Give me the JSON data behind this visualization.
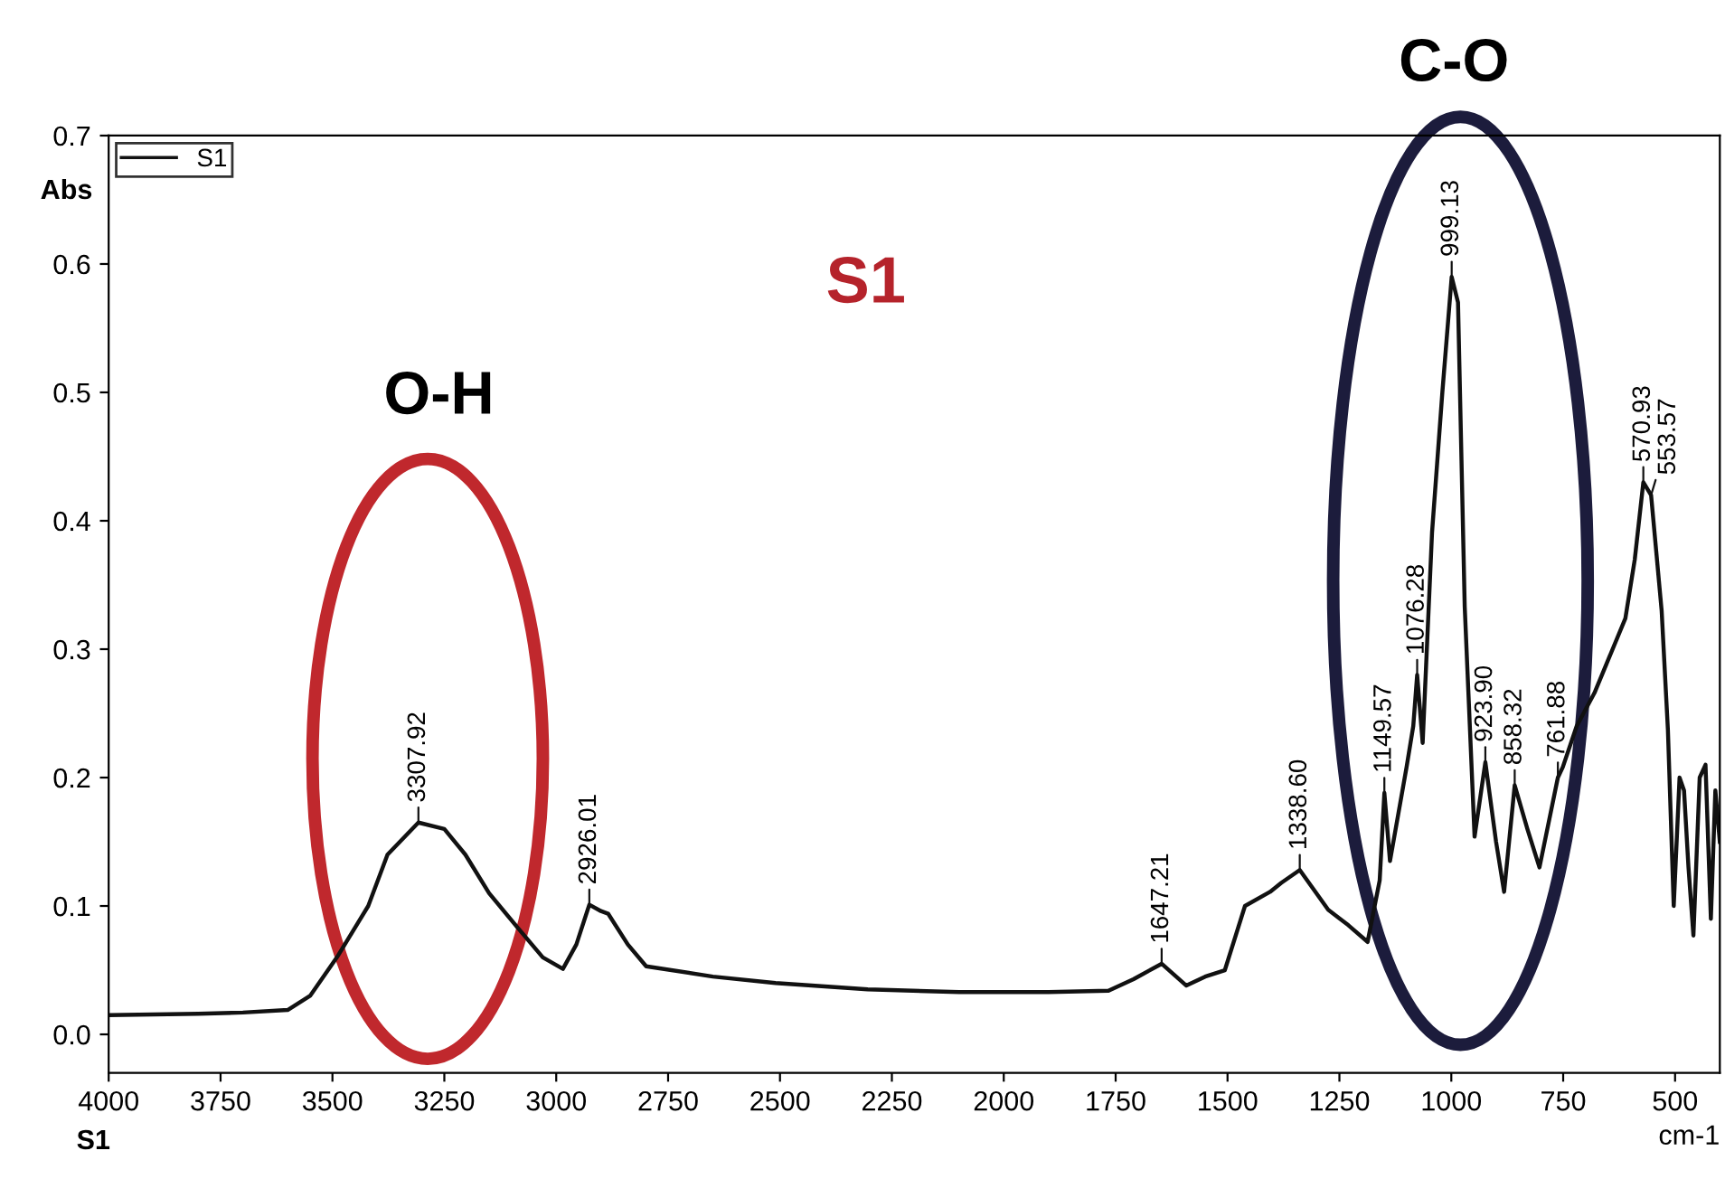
{
  "chart_data": {
    "type": "line",
    "title": "S1",
    "xlabel": "cm-1",
    "ylabel": "Abs",
    "xlim": [
      4000,
      400
    ],
    "ylim": [
      -0.03,
      0.7
    ],
    "xticks": [
      4000,
      3750,
      3500,
      3250,
      3000,
      2750,
      2500,
      2250,
      2000,
      1750,
      1500,
      1250,
      1000,
      750,
      500
    ],
    "yticks": [
      {
        "value": 0,
        "label": "0.0"
      },
      0.1,
      0.2,
      0.3,
      0.4,
      0.5,
      0.6,
      0.7
    ],
    "grid": false,
    "legend": "top left",
    "annotations": [
      "O-H",
      "C-O",
      "S1",
      {
        "text": "3307.92",
        "x": 3307.92,
        "y": 0.165
      },
      {
        "text": "2926.01",
        "x": 2926.01,
        "y": 0.101
      },
      {
        "text": "1647.21",
        "x": 1647.21,
        "y": 0.055
      },
      {
        "text": "1338.60",
        "x": 1338.6,
        "y": 0.128
      },
      {
        "text": "1149.57",
        "x": 1149.57,
        "y": 0.188
      },
      {
        "text": "1076.28",
        "x": 1076.28,
        "y": 0.28
      },
      {
        "text": "999.13",
        "x": 999.13,
        "y": 0.59
      },
      {
        "text": "923.90",
        "x": 923.9,
        "y": 0.212
      },
      {
        "text": "858.32",
        "x": 858.32,
        "y": 0.194
      },
      {
        "text": "761.88",
        "x": 761.88,
        "y": 0.2
      },
      {
        "text": "570.93",
        "x": 570.93,
        "y": 0.43
      },
      {
        "text": "553.57",
        "x": 553.57,
        "y": 0.42
      }
    ],
    "series": [
      {
        "name": "S1",
        "color": "#111111",
        "x": [
          4000,
          3800,
          3700,
          3600,
          3550,
          3490,
          3420,
          3377,
          3307.92,
          3250,
          3203,
          3150,
          3086,
          3030,
          2985,
          2955,
          2926.01,
          2900,
          2884,
          2840,
          2799,
          2650,
          2510,
          2304,
          2100,
          1900,
          1766,
          1710,
          1647.21,
          1592,
          1550,
          1506,
          1461,
          1405,
          1380,
          1338.6,
          1275,
          1230,
          1187,
          1160,
          1149.57,
          1137,
          1100,
          1085,
          1076.28,
          1064,
          1043,
          1020,
          999.13,
          985,
          970,
          948,
          923.9,
          900,
          882,
          858.32,
          830,
          803,
          761.88,
          751,
          720,
          680,
          611,
          590,
          570.93,
          553.57,
          530,
          516,
          503,
          490,
          480,
          470,
          459,
          445,
          432,
          420,
          410,
          400
        ],
        "values": [
          0.015,
          0.016,
          0.017,
          0.019,
          0.03,
          0.06,
          0.1,
          0.14,
          0.165,
          0.16,
          0.14,
          0.11,
          0.083,
          0.06,
          0.051,
          0.07,
          0.101,
          0.096,
          0.094,
          0.07,
          0.053,
          0.045,
          0.04,
          0.035,
          0.033,
          0.033,
          0.034,
          0.043,
          0.055,
          0.038,
          0.045,
          0.05,
          0.1,
          0.111,
          0.118,
          0.128,
          0.097,
          0.085,
          0.072,
          0.12,
          0.188,
          0.135,
          0.208,
          0.24,
          0.28,
          0.227,
          0.391,
          0.5,
          0.59,
          0.57,
          0.333,
          0.154,
          0.212,
          0.15,
          0.111,
          0.194,
          0.16,
          0.13,
          0.2,
          0.208,
          0.24,
          0.266,
          0.324,
          0.37,
          0.43,
          0.42,
          0.33,
          0.237,
          0.1,
          0.2,
          0.19,
          0.13,
          0.077,
          0.2,
          0.21,
          0.09,
          0.19,
          0.15
        ]
      }
    ]
  }
}
